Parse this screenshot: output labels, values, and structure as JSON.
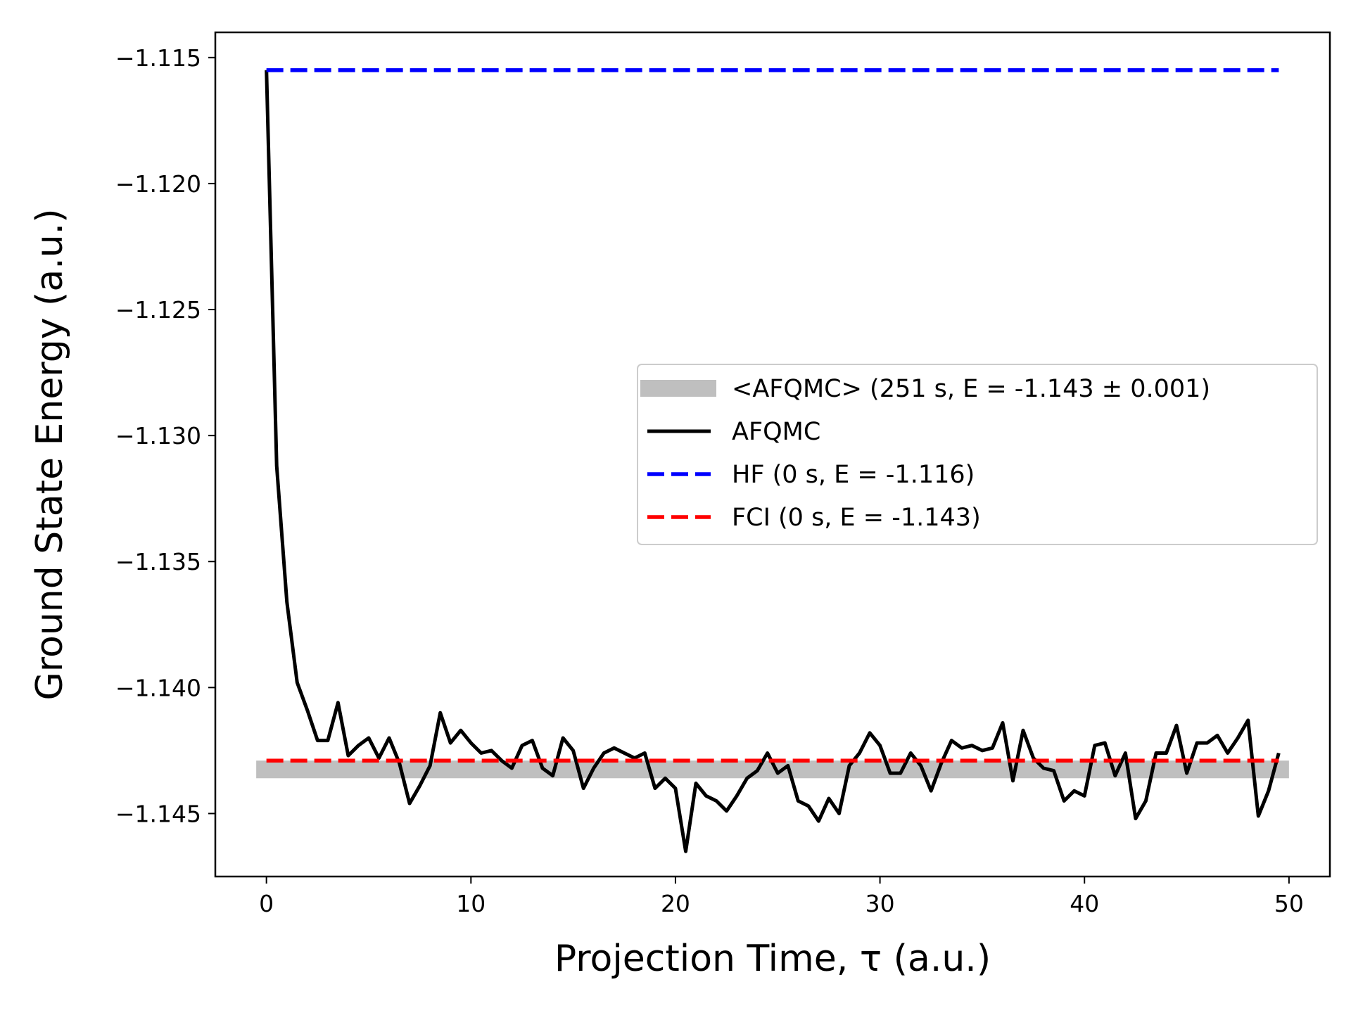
{
  "chart_data": {
    "type": "line",
    "title": "",
    "xlabel": "Projection Time, τ (a.u.)",
    "ylabel": "Ground State Energy (a.u.)",
    "xlim": [
      -2.5,
      52.0
    ],
    "ylim": [
      -1.1475,
      -1.114
    ],
    "xticks": [
      0,
      10,
      20,
      30,
      40,
      50
    ],
    "xtick_labels": [
      "0",
      "10",
      "20",
      "30",
      "40",
      "50"
    ],
    "yticks": [
      -1.115,
      -1.12,
      -1.125,
      -1.13,
      -1.135,
      -1.14,
      -1.145
    ],
    "ytick_labels": [
      "−1.115",
      "−1.120",
      "−1.125",
      "−1.130",
      "−1.135",
      "−1.140",
      "−1.145"
    ],
    "grid": false,
    "legend_position": "center-right",
    "series": [
      {
        "name": "<AFQMC> (251 s, E = -1.143 ± 0.001)",
        "kind": "band",
        "color": "#bfbfbf",
        "x": [
          -0.5,
          50.0
        ],
        "y_low": -1.1436,
        "y_high": -1.1429
      },
      {
        "name": "AFQMC",
        "kind": "line",
        "color": "#000000",
        "x": [
          0.0,
          0.5,
          1.0,
          1.5,
          2.0,
          2.5,
          3.0,
          3.5,
          4.0,
          4.5,
          5.0,
          5.5,
          6.0,
          6.5,
          7.0,
          7.5,
          8.0,
          8.5,
          9.0,
          9.5,
          10.0,
          10.5,
          11.0,
          11.5,
          12.0,
          12.5,
          13.0,
          13.5,
          14.0,
          14.5,
          15.0,
          15.5,
          16.0,
          16.5,
          17.0,
          17.5,
          18.0,
          18.5,
          19.0,
          19.5,
          20.0,
          20.5,
          21.0,
          21.5,
          22.0,
          22.5,
          23.0,
          23.5,
          24.0,
          24.5,
          25.0,
          25.5,
          26.0,
          26.5,
          27.0,
          27.5,
          28.0,
          28.5,
          29.0,
          29.5,
          30.0,
          30.5,
          31.0,
          31.5,
          32.0,
          32.5,
          33.0,
          33.5,
          34.0,
          34.5,
          35.0,
          35.5,
          36.0,
          36.5,
          37.0,
          37.5,
          38.0,
          38.5,
          39.0,
          39.5,
          40.0,
          40.5,
          41.0,
          41.5,
          42.0,
          42.5,
          43.0,
          43.5,
          44.0,
          44.5,
          45.0,
          45.5,
          46.0,
          46.5,
          47.0,
          47.5,
          48.0,
          48.5,
          49.0,
          49.5
        ],
        "y": [
          -1.1155,
          -1.1312,
          -1.1366,
          -1.1398,
          -1.1409,
          -1.1421,
          -1.1421,
          -1.1406,
          -1.1427,
          -1.1423,
          -1.142,
          -1.1428,
          -1.142,
          -1.143,
          -1.1446,
          -1.1439,
          -1.1431,
          -1.141,
          -1.1422,
          -1.1417,
          -1.1422,
          -1.1426,
          -1.1425,
          -1.1429,
          -1.1432,
          -1.1423,
          -1.1421,
          -1.1432,
          -1.1435,
          -1.142,
          -1.1425,
          -1.144,
          -1.1432,
          -1.1426,
          -1.1424,
          -1.1426,
          -1.1428,
          -1.1426,
          -1.144,
          -1.1436,
          -1.144,
          -1.1465,
          -1.1438,
          -1.1443,
          -1.1445,
          -1.1449,
          -1.1443,
          -1.1436,
          -1.1433,
          -1.1426,
          -1.1434,
          -1.1431,
          -1.1445,
          -1.1447,
          -1.1453,
          -1.1444,
          -1.145,
          -1.1431,
          -1.1426,
          -1.1418,
          -1.1423,
          -1.1434,
          -1.1434,
          -1.1426,
          -1.1431,
          -1.1441,
          -1.143,
          -1.1421,
          -1.1424,
          -1.1423,
          -1.1425,
          -1.1424,
          -1.1414,
          -1.1437,
          -1.1417,
          -1.1428,
          -1.1432,
          -1.1433,
          -1.1445,
          -1.1441,
          -1.1443,
          -1.1423,
          -1.1422,
          -1.1435,
          -1.1426,
          -1.1452,
          -1.1445,
          -1.1426,
          -1.1426,
          -1.1415,
          -1.1434,
          -1.1422,
          -1.1422,
          -1.1419,
          -1.1426,
          -1.142,
          -1.1413,
          -1.1451,
          -1.1441,
          -1.1426
        ]
      },
      {
        "name": "HF (0 s, E = -1.116)",
        "kind": "hline",
        "color": "#0000ff",
        "dashed": true,
        "x": [
          0.0,
          49.5
        ],
        "y": -1.1155
      },
      {
        "name": "FCI (0 s, E = -1.143)",
        "kind": "hline",
        "color": "#ff0000",
        "dashed": true,
        "x": [
          0.0,
          49.5
        ],
        "y": -1.1429
      }
    ]
  }
}
